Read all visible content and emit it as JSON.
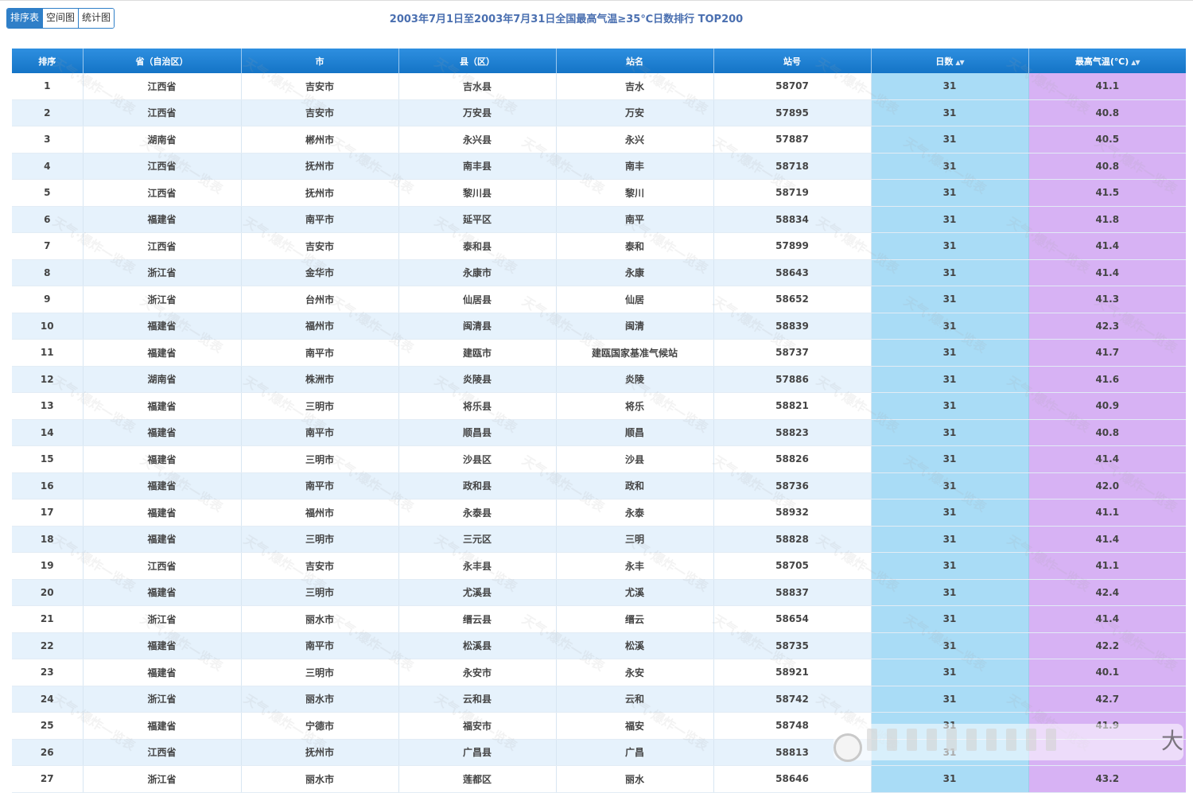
{
  "tabs": [
    "排序表",
    "空间图",
    "统计图"
  ],
  "title": "2003年7月1日至2003年7月31日全国最高气温≥35℃日数排行 TOP200",
  "columns": [
    "排序",
    "省（自治区）",
    "市",
    "县（区）",
    "站名",
    "站号",
    "日数",
    "最高气温(℃)"
  ],
  "watermark_text": "天气·爆炸一览表",
  "overlay_text": "大",
  "rows": [
    [
      "1",
      "江西省",
      "吉安市",
      "吉水县",
      "吉水",
      "58707",
      "31",
      "41.1"
    ],
    [
      "2",
      "江西省",
      "吉安市",
      "万安县",
      "万安",
      "57895",
      "31",
      "40.8"
    ],
    [
      "3",
      "湖南省",
      "郴州市",
      "永兴县",
      "永兴",
      "57887",
      "31",
      "40.5"
    ],
    [
      "4",
      "江西省",
      "抚州市",
      "南丰县",
      "南丰",
      "58718",
      "31",
      "40.8"
    ],
    [
      "5",
      "江西省",
      "抚州市",
      "黎川县",
      "黎川",
      "58719",
      "31",
      "41.5"
    ],
    [
      "6",
      "福建省",
      "南平市",
      "延平区",
      "南平",
      "58834",
      "31",
      "41.8"
    ],
    [
      "7",
      "江西省",
      "吉安市",
      "泰和县",
      "泰和",
      "57899",
      "31",
      "41.4"
    ],
    [
      "8",
      "浙江省",
      "金华市",
      "永康市",
      "永康",
      "58643",
      "31",
      "41.4"
    ],
    [
      "9",
      "浙江省",
      "台州市",
      "仙居县",
      "仙居",
      "58652",
      "31",
      "41.3"
    ],
    [
      "10",
      "福建省",
      "福州市",
      "闽清县",
      "闽清",
      "58839",
      "31",
      "42.3"
    ],
    [
      "11",
      "福建省",
      "南平市",
      "建瓯市",
      "建瓯国家基准气候站",
      "58737",
      "31",
      "41.7"
    ],
    [
      "12",
      "湖南省",
      "株洲市",
      "炎陵县",
      "炎陵",
      "57886",
      "31",
      "41.6"
    ],
    [
      "13",
      "福建省",
      "三明市",
      "将乐县",
      "将乐",
      "58821",
      "31",
      "40.9"
    ],
    [
      "14",
      "福建省",
      "南平市",
      "顺昌县",
      "顺昌",
      "58823",
      "31",
      "40.8"
    ],
    [
      "15",
      "福建省",
      "三明市",
      "沙县区",
      "沙县",
      "58826",
      "31",
      "41.4"
    ],
    [
      "16",
      "福建省",
      "南平市",
      "政和县",
      "政和",
      "58736",
      "31",
      "42.0"
    ],
    [
      "17",
      "福建省",
      "福州市",
      "永泰县",
      "永泰",
      "58932",
      "31",
      "41.1"
    ],
    [
      "18",
      "福建省",
      "三明市",
      "三元区",
      "三明",
      "58828",
      "31",
      "41.4"
    ],
    [
      "19",
      "江西省",
      "吉安市",
      "永丰县",
      "永丰",
      "58705",
      "31",
      "41.1"
    ],
    [
      "20",
      "福建省",
      "三明市",
      "尤溪县",
      "尤溪",
      "58837",
      "31",
      "42.4"
    ],
    [
      "21",
      "浙江省",
      "丽水市",
      "缙云县",
      "缙云",
      "58654",
      "31",
      "41.4"
    ],
    [
      "22",
      "福建省",
      "南平市",
      "松溪县",
      "松溪",
      "58735",
      "31",
      "42.2"
    ],
    [
      "23",
      "福建省",
      "三明市",
      "永安市",
      "永安",
      "58921",
      "31",
      "40.1"
    ],
    [
      "24",
      "浙江省",
      "丽水市",
      "云和县",
      "云和",
      "58742",
      "31",
      "42.7"
    ],
    [
      "25",
      "福建省",
      "宁德市",
      "福安市",
      "福安",
      "58748",
      "31",
      "41.9"
    ],
    [
      "26",
      "江西省",
      "抚州市",
      "广昌县",
      "广昌",
      "58813",
      "31",
      ""
    ],
    [
      "27",
      "浙江省",
      "丽水市",
      "莲都区",
      "丽水",
      "58646",
      "31",
      "43.2"
    ]
  ]
}
